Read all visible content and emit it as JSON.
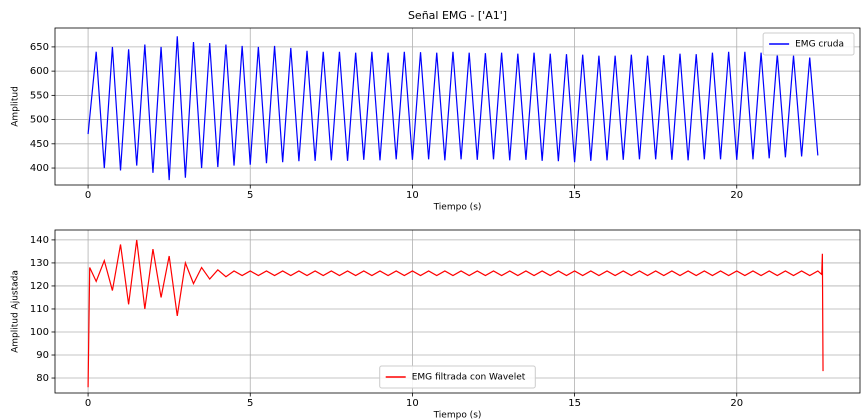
{
  "chart_data": [
    {
      "type": "line",
      "title": "Señal EMG - ['A1']",
      "xlabel": "Tiempo (s)",
      "ylabel": "Amplitud",
      "xlim": [
        -1.02,
        23.8
      ],
      "ylim": [
        365,
        689
      ],
      "xticks": [
        0,
        5,
        10,
        15,
        20
      ],
      "yticks": [
        400,
        450,
        500,
        550,
        600,
        650
      ],
      "grid": true,
      "legend": "upper right",
      "series": [
        {
          "name": "EMG cruda",
          "color": "#0000ff",
          "x": [
            0,
            0.25,
            0.5,
            0.75,
            1,
            1.25,
            1.5,
            1.75,
            2,
            2.25,
            2.5,
            2.75,
            3,
            3.25,
            3.5,
            3.75,
            4,
            4.25,
            4.5,
            4.75,
            5,
            5.25,
            5.5,
            5.75,
            6,
            6.25,
            6.5,
            6.75,
            7,
            7.25,
            7.5,
            7.75,
            8,
            8.25,
            8.5,
            8.75,
            9,
            9.25,
            9.5,
            9.75,
            10,
            10.25,
            10.5,
            10.75,
            11,
            11.25,
            11.5,
            11.75,
            12,
            12.25,
            12.5,
            12.75,
            13,
            13.25,
            13.5,
            13.75,
            14,
            14.25,
            14.5,
            14.75,
            15,
            15.25,
            15.5,
            15.75,
            16,
            16.25,
            16.5,
            16.75,
            17,
            17.25,
            17.5,
            17.75,
            18,
            18.25,
            18.5,
            18.75,
            19,
            19.25,
            19.5,
            19.75,
            20,
            20.25,
            20.5,
            20.75,
            21,
            21.25,
            21.5,
            21.75,
            22,
            22.25,
            22.5
          ],
          "values": [
            470,
            640,
            400,
            650,
            395,
            645,
            405,
            655,
            390,
            650,
            375,
            672,
            380,
            660,
            400,
            658,
            402,
            655,
            405,
            652,
            407,
            650,
            410,
            652,
            412,
            648,
            414,
            642,
            415,
            640,
            416,
            640,
            415,
            638,
            417,
            640,
            416,
            638,
            418,
            640,
            417,
            639,
            418,
            638,
            416,
            640,
            418,
            638,
            417,
            637,
            418,
            638,
            416,
            636,
            417,
            638,
            415,
            636,
            414,
            635,
            412,
            634,
            415,
            632,
            416,
            632,
            417,
            634,
            418,
            632,
            418,
            633,
            417,
            636,
            416,
            635,
            418,
            638,
            418,
            640,
            417,
            640,
            418,
            638,
            420,
            635,
            422,
            632,
            424,
            628,
            426
          ]
        }
      ]
    },
    {
      "type": "line",
      "xlabel": "Tiempo (s)",
      "ylabel": "Amplitud Ajustada",
      "xlim": [
        -1.02,
        23.8
      ],
      "ylim": [
        73.5,
        144.3
      ],
      "xticks": [
        0,
        5,
        10,
        15,
        20
      ],
      "yticks": [
        80,
        90,
        100,
        110,
        120,
        130,
        140
      ],
      "grid": true,
      "legend": "lower center",
      "series": [
        {
          "name": "EMG filtrada con Wavelet",
          "color": "#ff0000",
          "x": [
            0,
            0.05,
            0.25,
            0.5,
            0.75,
            1,
            1.25,
            1.5,
            1.75,
            2,
            2.25,
            2.5,
            2.75,
            3,
            3.25,
            3.5,
            3.75,
            4,
            4.25,
            4.5,
            4.75,
            5,
            5.25,
            5.5,
            5.75,
            6,
            6.25,
            6.5,
            6.75,
            7,
            7.25,
            7.5,
            7.75,
            8,
            8.25,
            8.5,
            8.75,
            9,
            9.25,
            9.5,
            9.75,
            10,
            10.25,
            10.5,
            10.75,
            11,
            11.25,
            11.5,
            11.75,
            12,
            12.25,
            12.5,
            12.75,
            13,
            13.25,
            13.5,
            13.75,
            14,
            14.25,
            14.5,
            14.75,
            15,
            15.25,
            15.5,
            15.75,
            16,
            16.25,
            16.5,
            16.75,
            17,
            17.25,
            17.5,
            17.75,
            18,
            18.25,
            18.5,
            18.75,
            19,
            19.25,
            19.5,
            19.75,
            20,
            20.25,
            20.5,
            20.75,
            21,
            21.25,
            21.5,
            21.75,
            22,
            22.25,
            22.5,
            22.62,
            22.64,
            22.66
          ],
          "values": [
            76,
            128,
            122,
            131,
            118,
            138,
            112,
            140,
            110,
            136,
            115,
            133,
            107,
            130,
            121,
            128,
            123,
            127,
            124,
            126.5,
            124.5,
            126.5,
            124.5,
            126.5,
            124.5,
            126.5,
            124.5,
            126.5,
            124.5,
            126.5,
            124.5,
            126.5,
            124.5,
            126.5,
            124.5,
            126.5,
            124.5,
            126.5,
            124.5,
            126.5,
            124.5,
            126.5,
            124.5,
            126.5,
            124.5,
            126.5,
            124.5,
            126.5,
            124.5,
            126.5,
            124.5,
            126.5,
            124.5,
            126.5,
            124.5,
            126.5,
            124.5,
            126.5,
            124.5,
            126.5,
            124.5,
            126.5,
            124.5,
            126.5,
            124.5,
            126.5,
            124.5,
            126.5,
            124.5,
            126.5,
            124.5,
            126.5,
            124.5,
            126.5,
            124.5,
            126.5,
            124.5,
            126.5,
            124.5,
            126.5,
            124.5,
            126.5,
            124.5,
            126.5,
            124.5,
            126.5,
            124.5,
            126.5,
            124.5,
            126.5,
            124.5,
            126.5,
            125,
            134,
            83
          ]
        }
      ]
    }
  ]
}
